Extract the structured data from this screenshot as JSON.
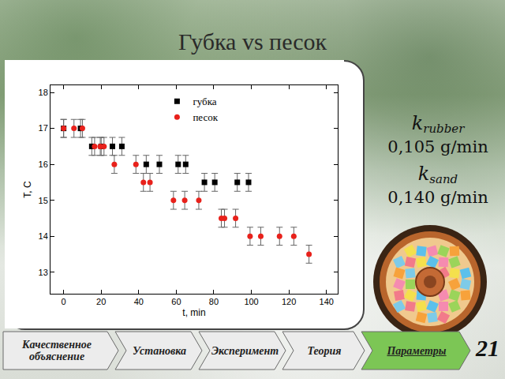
{
  "slide": {
    "title": "Губка vs песок",
    "coefficients": [
      {
        "symbol": "k",
        "subscript": "rubber",
        "value": "0,105 g/min"
      },
      {
        "symbol": "k",
        "subscript": "sand",
        "value": "0,140 g/min"
      }
    ],
    "nav": [
      {
        "label": "Качественное объяснение"
      },
      {
        "label": "Установка"
      },
      {
        "label": "Эксперимент"
      },
      {
        "label": "Теория"
      },
      {
        "label": "Параметры",
        "active": true
      }
    ],
    "page": "21"
  },
  "chart_data": {
    "type": "scatter",
    "x_label": "t, min",
    "y_label": "T, C",
    "xlim": [
      -7,
      146
    ],
    "xticks": [
      0,
      20,
      40,
      60,
      80,
      100,
      120,
      140
    ],
    "ylim": [
      12.4,
      18.2
    ],
    "yticks": [
      13,
      14,
      15,
      16,
      17,
      18
    ],
    "legend": "upper right",
    "series": [
      {
        "name": "губка",
        "color": "#000000",
        "marker": "square",
        "error": 0.25,
        "x": [
          0,
          9,
          15,
          20,
          26,
          31,
          44,
          51,
          61,
          65,
          75,
          80.5,
          92.5,
          98.5
        ],
        "values": [
          17,
          17,
          16.5,
          16.5,
          16.5,
          16.5,
          16,
          16,
          16,
          16,
          15.5,
          15.5,
          15.5,
          15.5
        ]
      },
      {
        "name": "песок",
        "color": "#e8211b",
        "marker": "circle",
        "error": 0.25,
        "x": [
          0,
          5.5,
          10,
          16.5,
          19.5,
          21.5,
          27,
          38.5,
          42.5,
          46,
          58.5,
          64.5,
          72,
          84,
          85.7,
          91.6,
          99.3,
          105,
          115,
          122.6,
          130.7
        ],
        "values": [
          17,
          17,
          17,
          16.5,
          16.5,
          16.5,
          16,
          16,
          15.5,
          15.5,
          15,
          15,
          15,
          14.5,
          14.5,
          14.5,
          14,
          14,
          14,
          14,
          13.5
        ]
      }
    ]
  }
}
